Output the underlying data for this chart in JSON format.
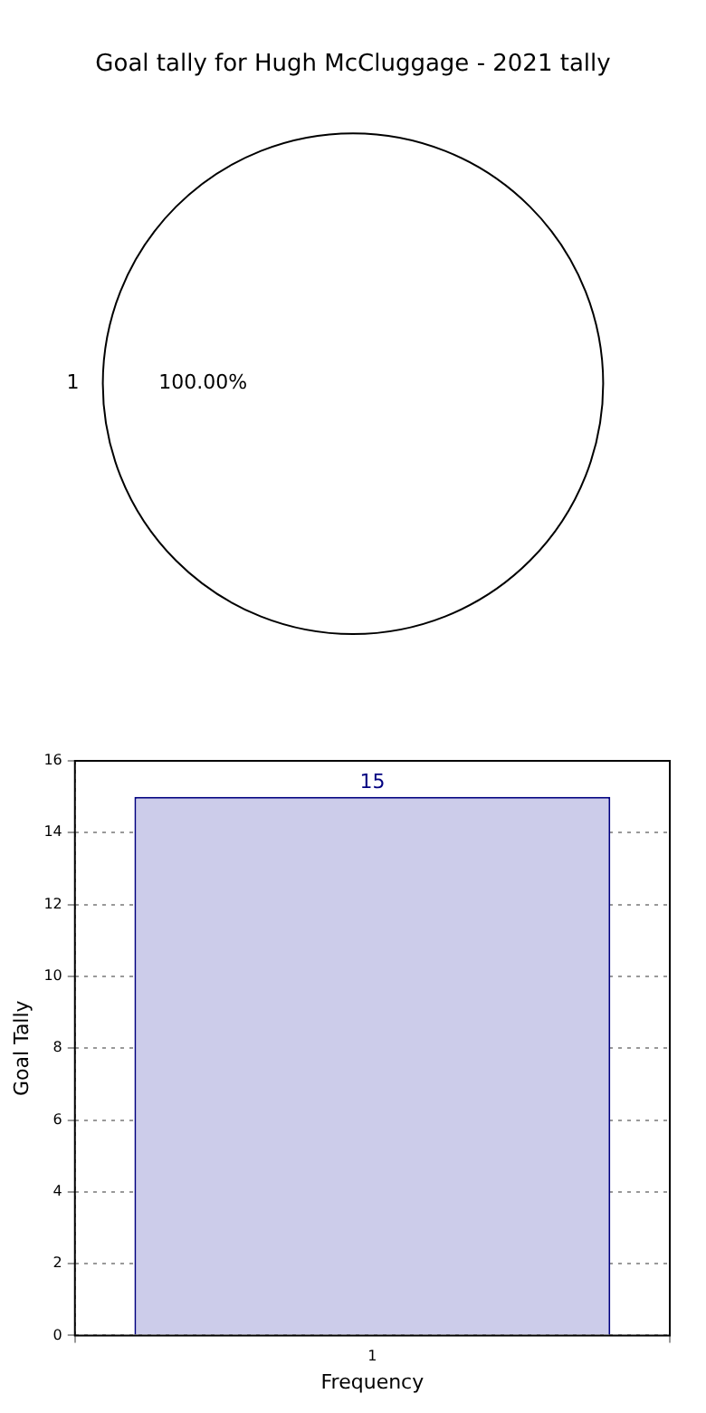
{
  "chart_data": [
    {
      "type": "pie",
      "title": "Goal tally for Hugh McCluggage - 2021 tally",
      "categories": [
        "1"
      ],
      "values": [
        100
      ],
      "colors": [
        "#ffffff"
      ],
      "value_labels": [
        "100.00%"
      ],
      "legend": false
    },
    {
      "type": "bar",
      "categories": [
        "1"
      ],
      "values": [
        15
      ],
      "color": "#ccccea",
      "xlabel": "Frequency",
      "ylabel": "Goal Tally",
      "ylim": [
        0,
        16
      ],
      "yticks": [
        0,
        2,
        4,
        6,
        8,
        10,
        12,
        14,
        16
      ],
      "grid": true,
      "data_labels": true,
      "legend": false
    }
  ]
}
